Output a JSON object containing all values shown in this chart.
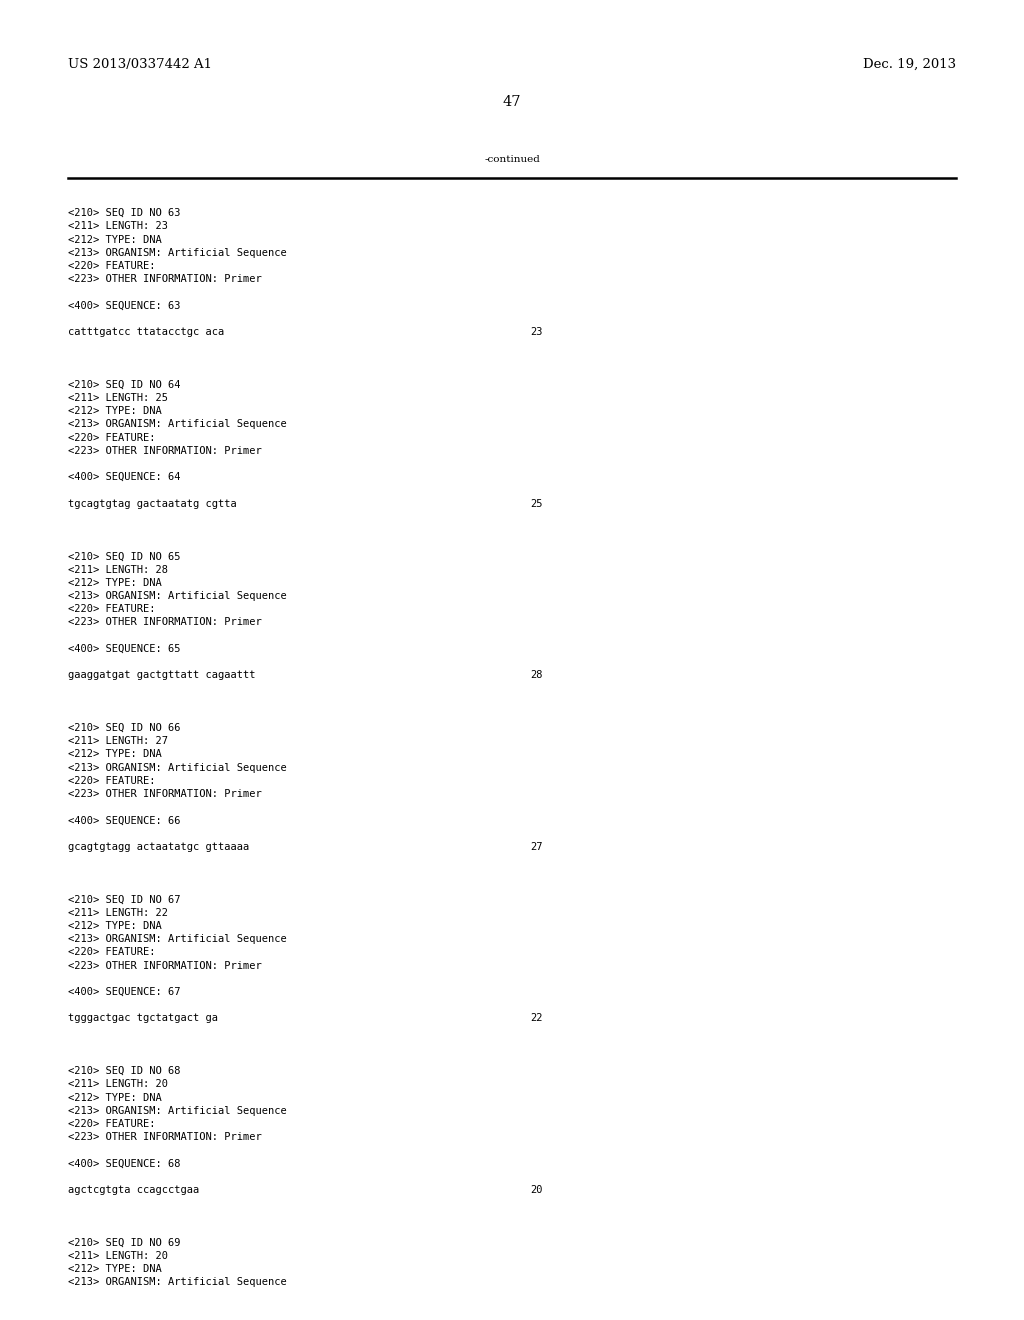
{
  "header_left": "US 2013/0337442 A1",
  "header_right": "Dec. 19, 2013",
  "page_number": "47",
  "continued_label": "-continued",
  "background_color": "#ffffff",
  "text_color": "#000000",
  "font_size_header": 9.5,
  "font_size_body": 7.5,
  "font_size_page": 10.5,
  "content_blocks": [
    {
      "meta": [
        "<210> SEQ ID NO 63",
        "<211> LENGTH: 23",
        "<212> TYPE: DNA",
        "<213> ORGANISM: Artificial Sequence",
        "<220> FEATURE:",
        "<223> OTHER INFORMATION: Primer"
      ],
      "seq_label": "<400> SEQUENCE: 63",
      "sequence": "catttgatcc ttatacctgc aca",
      "seq_num": "23"
    },
    {
      "meta": [
        "<210> SEQ ID NO 64",
        "<211> LENGTH: 25",
        "<212> TYPE: DNA",
        "<213> ORGANISM: Artificial Sequence",
        "<220> FEATURE:",
        "<223> OTHER INFORMATION: Primer"
      ],
      "seq_label": "<400> SEQUENCE: 64",
      "sequence": "tgcagtgtag gactaatatg cgtta",
      "seq_num": "25"
    },
    {
      "meta": [
        "<210> SEQ ID NO 65",
        "<211> LENGTH: 28",
        "<212> TYPE: DNA",
        "<213> ORGANISM: Artificial Sequence",
        "<220> FEATURE:",
        "<223> OTHER INFORMATION: Primer"
      ],
      "seq_label": "<400> SEQUENCE: 65",
      "sequence": "gaaggatgat gactgttatt cagaattt",
      "seq_num": "28"
    },
    {
      "meta": [
        "<210> SEQ ID NO 66",
        "<211> LENGTH: 27",
        "<212> TYPE: DNA",
        "<213> ORGANISM: Artificial Sequence",
        "<220> FEATURE:",
        "<223> OTHER INFORMATION: Primer"
      ],
      "seq_label": "<400> SEQUENCE: 66",
      "sequence": "gcagtgtagg actaatatgc gttaaaa",
      "seq_num": "27"
    },
    {
      "meta": [
        "<210> SEQ ID NO 67",
        "<211> LENGTH: 22",
        "<212> TYPE: DNA",
        "<213> ORGANISM: Artificial Sequence",
        "<220> FEATURE:",
        "<223> OTHER INFORMATION: Primer"
      ],
      "seq_label": "<400> SEQUENCE: 67",
      "sequence": "tgggactgac tgctatgact ga",
      "seq_num": "22"
    },
    {
      "meta": [
        "<210> SEQ ID NO 68",
        "<211> LENGTH: 20",
        "<212> TYPE: DNA",
        "<213> ORGANISM: Artificial Sequence",
        "<220> FEATURE:",
        "<223> OTHER INFORMATION: Primer"
      ],
      "seq_label": "<400> SEQUENCE: 68",
      "sequence": "agctcgtgta ccagcctgaa",
      "seq_num": "20"
    }
  ],
  "trailing_lines": [
    "<210> SEQ ID NO 69",
    "<211> LENGTH: 20",
    "<212> TYPE: DNA",
    "<213> ORGANISM: Artificial Sequence"
  ],
  "monospace_font": "DejaVu Sans Mono",
  "serif_font": "DejaVu Serif"
}
